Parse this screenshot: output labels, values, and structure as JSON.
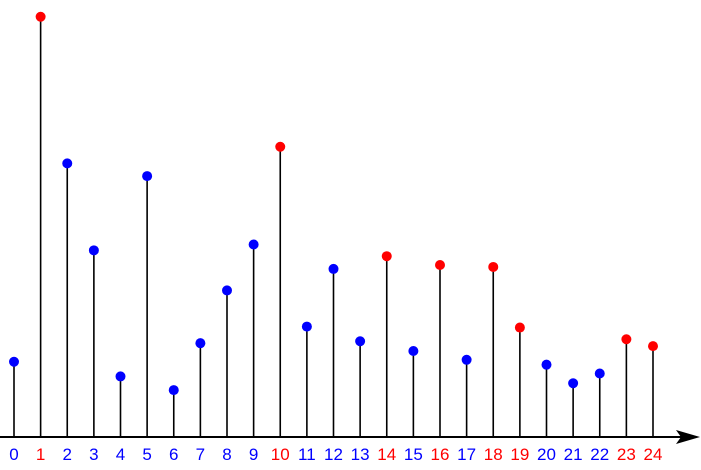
{
  "chart_data": {
    "type": "stem",
    "categories": [
      "0",
      "1",
      "2",
      "3",
      "4",
      "5",
      "6",
      "7",
      "8",
      "9",
      "10",
      "11",
      "12",
      "13",
      "14",
      "15",
      "16",
      "17",
      "18",
      "19",
      "20",
      "21",
      "22",
      "23",
      "24"
    ],
    "values": [
      77,
      430,
      280,
      191,
      62,
      267,
      48,
      96,
      150,
      197,
      297,
      113,
      172,
      98,
      185,
      88,
      176,
      79,
      174,
      112,
      74,
      55,
      65,
      100,
      93
    ],
    "highlighted": [
      1,
      10,
      14,
      16,
      18,
      19,
      23,
      24
    ],
    "ylim": [
      0,
      440
    ],
    "grid": false,
    "legend": "none",
    "title": "",
    "xlabel": "",
    "ylabel": ""
  },
  "colors": {
    "normal": "#0000ff",
    "highlight": "#ff0000",
    "stem": "#000000",
    "axis": "#000000"
  }
}
